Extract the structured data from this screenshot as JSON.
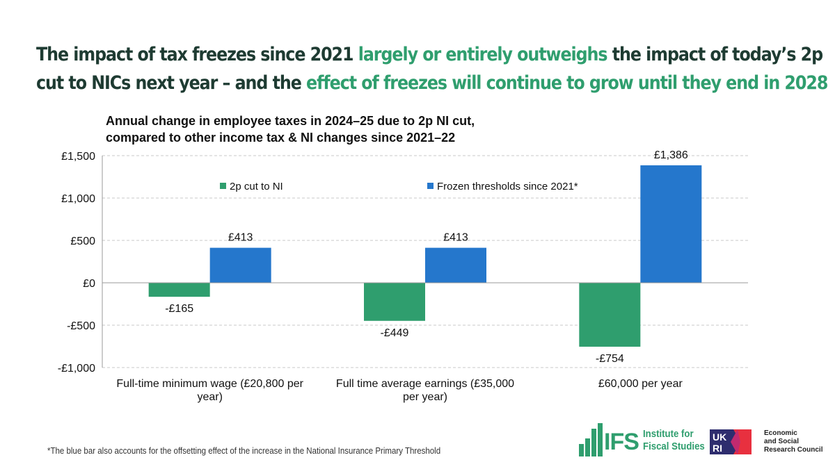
{
  "headline": {
    "part1": "The impact of tax freezes since 2021 ",
    "part2": "largely or entirely outweighs",
    "part3": " the impact of today’s 2p",
    "part4": "cut to NICs next year – and the ",
    "part5": "effect of freezes will continue to grow until they end in 2028"
  },
  "colors": {
    "green": "#2f9e6e",
    "blue": "#2577cc",
    "dark_green_text": "#1e3b32"
  },
  "chart_data": {
    "type": "bar",
    "title_line1": "Annual change in employee taxes in 2024–25 due to 2p NI cut,",
    "title_line2": "compared to other income tax & NI changes since 2021–22",
    "categories": [
      [
        "Full-time minimum wage (£20,800 per",
        "year)"
      ],
      [
        "Full time average earnings (£35,000",
        "per year)"
      ],
      [
        "£60,000 per year"
      ]
    ],
    "series": [
      {
        "name": "2p cut to NI",
        "color": "#2f9e6e",
        "values": [
          -165,
          -449,
          -754
        ],
        "labels": [
          "-£165",
          "-£449",
          "-£754"
        ]
      },
      {
        "name": "Frozen thresholds since 2021*",
        "color": "#2577cc",
        "values": [
          413,
          413,
          1386
        ],
        "labels": [
          "£413",
          "£413",
          "£1,386"
        ]
      }
    ],
    "ylim": [
      -1000,
      1500
    ],
    "yticks": [
      1500,
      1000,
      500,
      0,
      -500,
      -1000
    ],
    "ytick_labels": [
      "£1,500",
      "£1,000",
      "£500",
      "£0",
      "-£500",
      "-£1,000"
    ],
    "grid": true,
    "legend_position": "top"
  },
  "footnote": "*The blue bar also accounts for the offsetting effect of the increase in the National Insurance  Primary Threshold",
  "logos": {
    "ifs_mark": "IFS",
    "ifs_line1": "Institute for",
    "ifs_line2": "Fiscal Studies",
    "ukri_mark": "UKRI",
    "esrc_line1": "Economic",
    "esrc_line2": "and Social",
    "esrc_line3": "Research Council"
  }
}
